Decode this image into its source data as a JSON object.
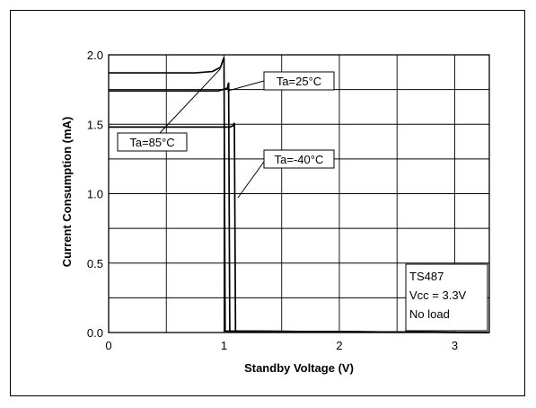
{
  "chart_data": {
    "type": "line",
    "title": "",
    "xlabel": "Standby Voltage (V)",
    "ylabel": "Current Consumption (mA)",
    "xlim": [
      0,
      3.3
    ],
    "ylim": [
      0,
      2.0
    ],
    "x_ticks": [
      {
        "v": 0,
        "label": "0"
      },
      {
        "v": 1,
        "label": "1"
      },
      {
        "v": 2,
        "label": "2"
      },
      {
        "v": 3,
        "label": "3"
      }
    ],
    "y_ticks": [
      {
        "v": 0,
        "label": "0.0"
      },
      {
        "v": 0.5,
        "label": "0.5"
      },
      {
        "v": 1.0,
        "label": "1.0"
      },
      {
        "v": 1.5,
        "label": "1.5"
      },
      {
        "v": 2.0,
        "label": "2.0"
      }
    ],
    "x_grid": [
      0.5,
      1.0,
      1.5,
      2.0,
      2.5,
      3.0
    ],
    "y_grid": [
      0.25,
      0.5,
      0.75,
      1.0,
      1.25,
      1.5,
      1.75,
      2.0
    ],
    "grid": true,
    "series": [
      {
        "name": "Ta=85°C",
        "color": "#000000",
        "x": [
          0,
          0.75,
          0.9,
          0.97,
          0.99,
          1.0,
          1.01,
          3.3
        ],
        "y": [
          1.87,
          1.87,
          1.88,
          1.91,
          1.96,
          1.98,
          0.01,
          0.0
        ]
      },
      {
        "name": "Ta=25°C",
        "color": "#000000",
        "x": [
          0,
          0.95,
          1.03,
          1.04,
          1.05,
          3.3
        ],
        "y": [
          1.74,
          1.74,
          1.76,
          1.8,
          0.01,
          0.0
        ]
      },
      {
        "name": "Ta=-40°C",
        "color": "#000000",
        "x": [
          0,
          1.05,
          1.08,
          1.09,
          1.1,
          3.3
        ],
        "y": [
          1.48,
          1.48,
          1.49,
          1.51,
          0.01,
          0.0
        ]
      }
    ],
    "annotations": [
      {
        "text": "Ta=25°C",
        "arrow_to": [
          1.03,
          1.74
        ]
      },
      {
        "text": "Ta=85°C",
        "arrow_to": [
          0.97,
          1.9
        ]
      },
      {
        "text": "Ta=-40°C",
        "arrow_to": [
          1.12,
          0.97
        ]
      }
    ],
    "info_box": {
      "lines": [
        "TS487",
        "Vcc = 3.3V",
        "No load"
      ],
      "placement": "bottom-right"
    }
  }
}
